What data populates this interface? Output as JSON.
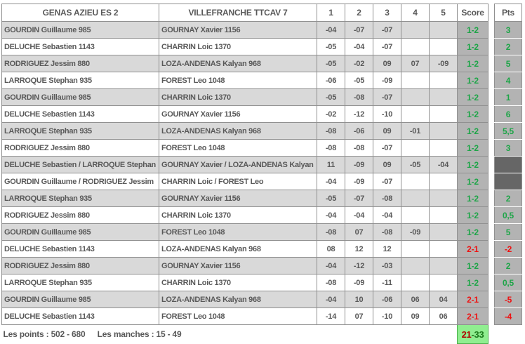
{
  "header": {
    "team_a": "GENAS AZIEU ES 2",
    "team_b": "VILLEFRANCHE TTCAV 7",
    "sets": [
      "1",
      "2",
      "3",
      "4",
      "5"
    ],
    "score_label": "Score",
    "pts_label": "Pts"
  },
  "matches": [
    {
      "player_a": "GOURDIN Guillaume 985",
      "player_b": "GOURNAY Xavier 1156",
      "sets": [
        "-04",
        "-07",
        "-07",
        "",
        ""
      ],
      "score": "1-2",
      "score_color": "green",
      "pts": "3",
      "pts_style": "green"
    },
    {
      "player_a": "DELUCHE Sebastien 1143",
      "player_b": "CHARRIN Loic 1370",
      "sets": [
        "-05",
        "-04",
        "-07",
        "",
        ""
      ],
      "score": "1-2",
      "score_color": "green",
      "pts": "2",
      "pts_style": "green"
    },
    {
      "player_a": "RODRIGUEZ Jessim 880",
      "player_b": "LOZA-ANDENAS Kalyan 968",
      "sets": [
        "-05",
        "-02",
        "09",
        "07",
        "-09"
      ],
      "score": "1-2",
      "score_color": "green",
      "pts": "5",
      "pts_style": "green"
    },
    {
      "player_a": "LARROQUE Stephan 935",
      "player_b": "FOREST Leo 1048",
      "sets": [
        "-06",
        "-05",
        "-09",
        "",
        ""
      ],
      "score": "1-2",
      "score_color": "green",
      "pts": "4",
      "pts_style": "green"
    },
    {
      "player_a": "GOURDIN Guillaume 985",
      "player_b": "CHARRIN Loic 1370",
      "sets": [
        "-05",
        "-08",
        "-07",
        "",
        ""
      ],
      "score": "1-2",
      "score_color": "green",
      "pts": "1",
      "pts_style": "green"
    },
    {
      "player_a": "DELUCHE Sebastien 1143",
      "player_b": "GOURNAY Xavier 1156",
      "sets": [
        "-02",
        "-12",
        "-10",
        "",
        ""
      ],
      "score": "1-2",
      "score_color": "green",
      "pts": "6",
      "pts_style": "green"
    },
    {
      "player_a": "LARROQUE Stephan 935",
      "player_b": "LOZA-ANDENAS Kalyan 968",
      "sets": [
        "-08",
        "-06",
        "09",
        "-01",
        ""
      ],
      "score": "1-2",
      "score_color": "green",
      "pts": "5,5",
      "pts_style": "green"
    },
    {
      "player_a": "RODRIGUEZ Jessim 880",
      "player_b": "FOREST Leo 1048",
      "sets": [
        "-08",
        "-08",
        "-07",
        "",
        ""
      ],
      "score": "1-2",
      "score_color": "green",
      "pts": "3",
      "pts_style": "green"
    },
    {
      "player_a": "DELUCHE Sebastien / LARROQUE Stephan",
      "player_b": "GOURNAY Xavier / LOZA-ANDENAS Kalyan",
      "sets": [
        "11",
        "-09",
        "09",
        "-05",
        "-04"
      ],
      "score": "1-2",
      "score_color": "green",
      "pts": "",
      "pts_style": "dark"
    },
    {
      "player_a": "GOURDIN Guillaume / RODRIGUEZ Jessim",
      "player_b": "CHARRIN Loic / FOREST Leo",
      "sets": [
        "-04",
        "-09",
        "-07",
        "",
        ""
      ],
      "score": "1-2",
      "score_color": "green",
      "pts": "",
      "pts_style": "dark"
    },
    {
      "player_a": "LARROQUE Stephan 935",
      "player_b": "GOURNAY Xavier 1156",
      "sets": [
        "-05",
        "-07",
        "-08",
        "",
        ""
      ],
      "score": "1-2",
      "score_color": "green",
      "pts": "2",
      "pts_style": "green"
    },
    {
      "player_a": "RODRIGUEZ Jessim 880",
      "player_b": "CHARRIN Loic 1370",
      "sets": [
        "-04",
        "-04",
        "-04",
        "",
        ""
      ],
      "score": "1-2",
      "score_color": "green",
      "pts": "0,5",
      "pts_style": "green"
    },
    {
      "player_a": "GOURDIN Guillaume 985",
      "player_b": "FOREST Leo 1048",
      "sets": [
        "-08",
        "07",
        "-08",
        "-09",
        ""
      ],
      "score": "1-2",
      "score_color": "green",
      "pts": "5",
      "pts_style": "green"
    },
    {
      "player_a": "DELUCHE Sebastien 1143",
      "player_b": "LOZA-ANDENAS Kalyan 968",
      "sets": [
        "08",
        "12",
        "12",
        "",
        ""
      ],
      "score": "2-1",
      "score_color": "red",
      "pts": "-2",
      "pts_style": "red"
    },
    {
      "player_a": "RODRIGUEZ Jessim 880",
      "player_b": "GOURNAY Xavier 1156",
      "sets": [
        "-04",
        "-12",
        "-03",
        "",
        ""
      ],
      "score": "1-2",
      "score_color": "green",
      "pts": "2",
      "pts_style": "green"
    },
    {
      "player_a": "LARROQUE Stephan 935",
      "player_b": "CHARRIN Loic 1370",
      "sets": [
        "-08",
        "-09",
        "-11",
        "",
        ""
      ],
      "score": "1-2",
      "score_color": "green",
      "pts": "0,5",
      "pts_style": "green"
    },
    {
      "player_a": "GOURDIN Guillaume 985",
      "player_b": "LOZA-ANDENAS Kalyan 968",
      "sets": [
        "-04",
        "10",
        "-06",
        "06",
        "04"
      ],
      "score": "2-1",
      "score_color": "red",
      "pts": "-5",
      "pts_style": "red"
    },
    {
      "player_a": "DELUCHE Sebastien 1143",
      "player_b": "FOREST Leo 1048",
      "sets": [
        "-14",
        "07",
        "-10",
        "09",
        "06"
      ],
      "score": "2-1",
      "score_color": "red",
      "pts": "-4",
      "pts_style": "red"
    }
  ],
  "footer": {
    "points": "Les points : 502 - 680",
    "manches": "Les manches : 15 - 49",
    "total_home": "21",
    "total_separator": "-",
    "total_away": "33"
  },
  "colors": {
    "green": "#1ea548",
    "red": "#ee1111",
    "text": "#595959",
    "grid": "#909090",
    "alt_row": "#d9d9d9",
    "score_bg": "#b3b3b3",
    "dark_cell": "#666666",
    "total_bg": "#90ee90",
    "total_border": "#4db24d",
    "total_home_color": "#b00000",
    "total_away_color": "#1c7a1c"
  }
}
